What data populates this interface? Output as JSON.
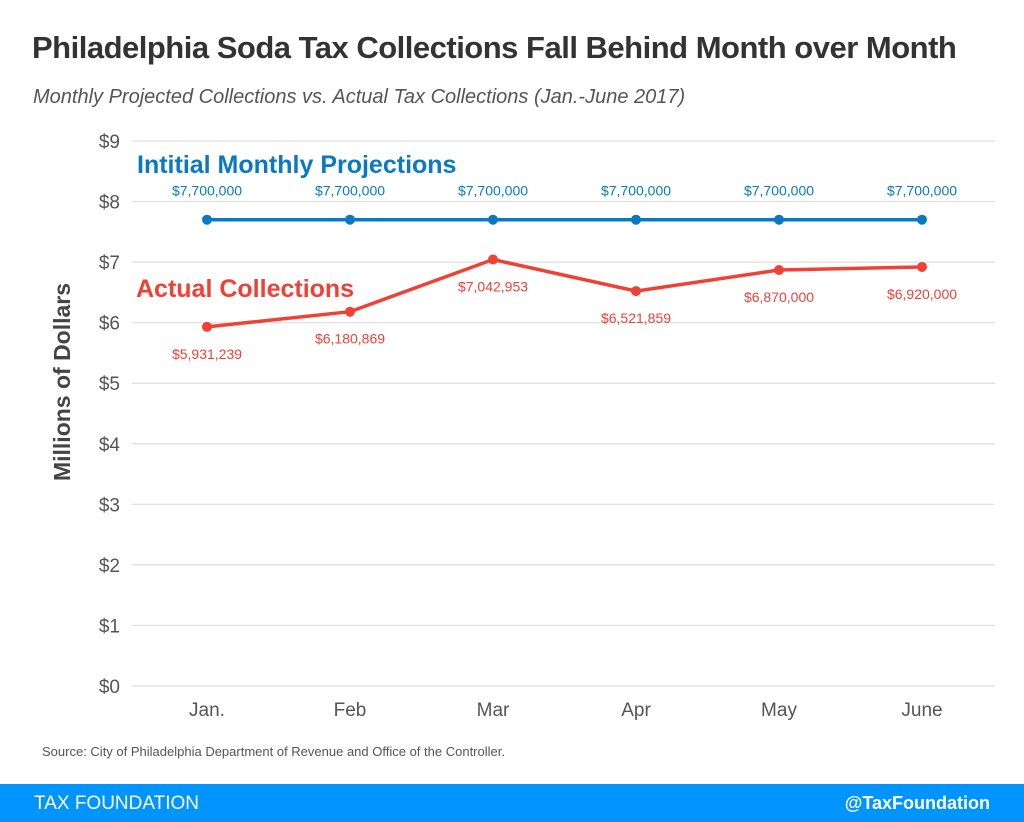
{
  "title": "Philadelphia Soda Tax Collections Fall Behind Month over Month",
  "subtitle": "Monthly Projected Collections vs. Actual Tax Collections (Jan.-June 2017)",
  "source": "Source: City of Philadelphia Department of Revenue and Office of the Controller.",
  "footer": {
    "brand": "TAX FOUNDATION",
    "handle": "@TaxFoundation"
  },
  "chart_data": {
    "type": "line",
    "title": "Philadelphia Soda Tax Collections Fall Behind Month over Month",
    "ylabel": "Millions of Dollars",
    "xlabel": "",
    "categories": [
      "Jan.",
      "Feb",
      "Mar",
      "Apr",
      "May",
      "June"
    ],
    "yticks": [
      "$0",
      "$1",
      "$2",
      "$3",
      "$4",
      "$5",
      "$6",
      "$7",
      "$8",
      "$9"
    ],
    "ylim": [
      0,
      9
    ],
    "grid": true,
    "series": [
      {
        "name": "Intitial Monthly Projections",
        "color": "#0a79c4",
        "values": [
          7.7,
          7.7,
          7.7,
          7.7,
          7.7,
          7.7
        ],
        "labels": [
          "$7,700,000",
          "$7,700,000",
          "$7,700,000",
          "$7,700,000",
          "$7,700,000",
          "$7,700,000"
        ]
      },
      {
        "name": "Actual Collections",
        "color": "#ef4136",
        "values": [
          5.931239,
          6.180869,
          7.042953,
          6.521859,
          6.87,
          6.92
        ],
        "labels": [
          "$5,931,239",
          "$6,180,869",
          "$7,042,953",
          "$6,521,859",
          "$6,870,000",
          "$6,920,000"
        ]
      }
    ]
  }
}
